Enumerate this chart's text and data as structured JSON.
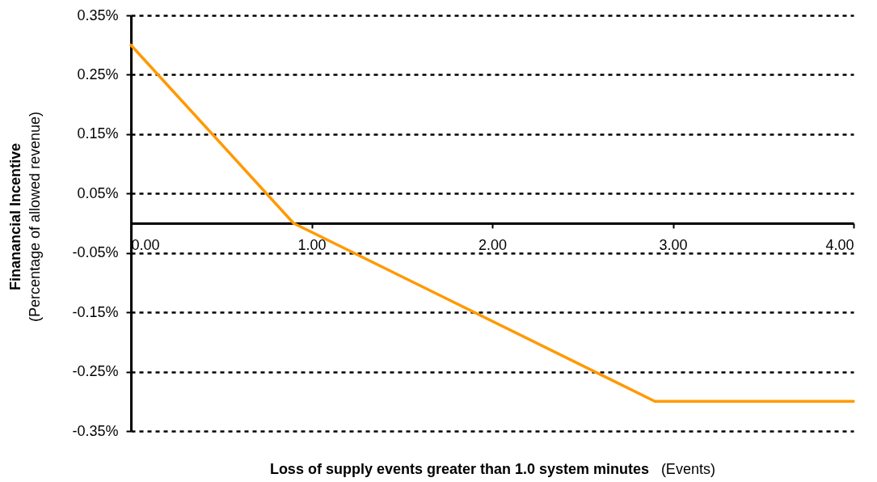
{
  "chart_data": {
    "type": "line",
    "xlabel": "Loss of supply events greater than 1.0 system minutes (Events)",
    "ylabel": "Finanancial Incentive\n(Percentage of allowed  revenue)",
    "x": [
      0,
      0.9,
      2.9,
      4
    ],
    "series": [
      {
        "color": "#ff9900",
        "values": [
          0.3,
          0,
          -0.3,
          -0.3
        ]
      }
    ],
    "xlim": [
      0,
      4
    ],
    "xticks": [
      {
        "value": 0,
        "label": "0.00"
      },
      {
        "value": 1,
        "label": "1.00"
      },
      {
        "value": 2,
        "label": "2.00"
      },
      {
        "value": 3,
        "label": "3.00"
      },
      {
        "value": 4,
        "label": "4.00"
      }
    ],
    "ylim": [
      -0.35,
      0.35
    ],
    "yticks": [
      {
        "value": 0.35,
        "label": "0.35%"
      },
      {
        "value": 0.25,
        "label": "0.25%"
      },
      {
        "value": 0.15,
        "label": "0.15%"
      },
      {
        "value": 0.05,
        "label": "0.05%"
      },
      {
        "value": -0.05,
        "label": "-0.05%"
      },
      {
        "value": -0.15,
        "label": "-0.15%"
      },
      {
        "value": -0.25,
        "label": "-0.25%"
      },
      {
        "value": -0.35,
        "label": "-0.35%"
      }
    ],
    "grid": "y",
    "line_style": "solid"
  }
}
